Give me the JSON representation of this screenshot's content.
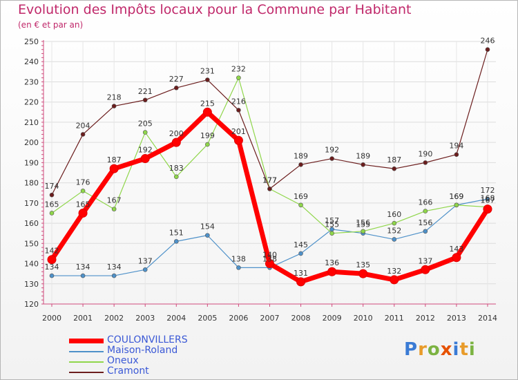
{
  "title": "Evolution des Impôts locaux pour la Commune par Habitant",
  "subtitle": "(en € et par an)",
  "logo_text": "Proxiti",
  "chart_data": {
    "type": "line",
    "title": "Evolution des Impôts locaux pour la Commune par Habitant",
    "subtitle": "(en € et par an)",
    "x": [
      "2000",
      "2001",
      "2002",
      "2003",
      "2004",
      "2005",
      "2006",
      "2007",
      "2008",
      "2009",
      "2010",
      "2011",
      "2012",
      "2013",
      "2014"
    ],
    "ylim": [
      120,
      250
    ],
    "yticks": [
      120,
      130,
      140,
      150,
      160,
      170,
      180,
      190,
      200,
      210,
      220,
      230,
      240,
      250
    ],
    "grid": true,
    "legend_position": "bottom-left",
    "series": [
      {
        "name": "COULONVILLERS",
        "color": "#ff0000",
        "values": [
          142,
          165,
          187,
          192,
          200,
          215,
          201,
          140,
          131,
          136,
          135,
          132,
          137,
          143,
          167
        ],
        "labels": [
          "142",
          "165",
          "187",
          "192",
          "200",
          "215",
          "201",
          "140",
          "131",
          "136",
          "135",
          "132",
          "137",
          "143",
          "167"
        ]
      },
      {
        "name": "Maison-Roland",
        "color": "#4e91c9",
        "values": [
          134,
          134,
          134,
          137,
          151,
          154,
          138,
          138,
          145,
          157,
          155,
          152,
          156,
          169,
          172
        ],
        "labels": [
          "134",
          "134",
          "134",
          "137",
          "151",
          "154",
          "138",
          "138",
          "145",
          "157",
          "155",
          "152",
          "156",
          "169",
          "172"
        ]
      },
      {
        "name": "Oneux",
        "color": "#8fd64a",
        "values": [
          165,
          176,
          167,
          205,
          183,
          199,
          232,
          177,
          169,
          155,
          156,
          160,
          166,
          169,
          168
        ],
        "labels": [
          "165",
          "176",
          "167",
          "205",
          "183",
          "199",
          "232",
          "177",
          "169",
          "155",
          "156",
          "160",
          "166",
          "169",
          "168"
        ]
      },
      {
        "name": "Cramont",
        "color": "#6b1d1d",
        "values": [
          174,
          204,
          218,
          221,
          227,
          231,
          216,
          177,
          189,
          192,
          189,
          187,
          190,
          194,
          246
        ],
        "labels": [
          "174",
          "204",
          "218",
          "221",
          "227",
          "231",
          "216",
          "177",
          "189",
          "192",
          "189",
          "187",
          "190",
          "194",
          "246"
        ]
      }
    ]
  }
}
